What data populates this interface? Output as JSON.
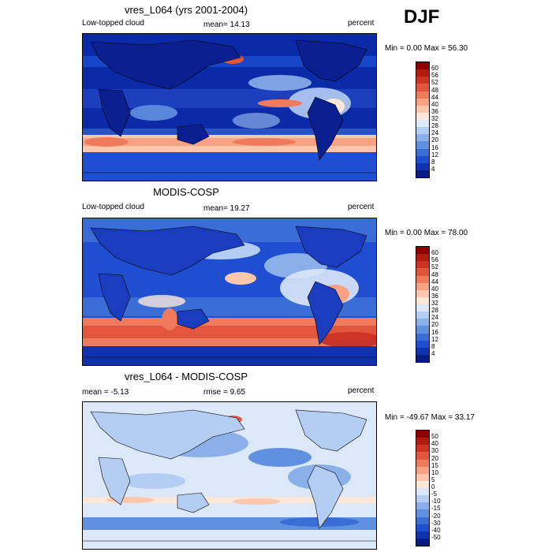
{
  "season": "DJF",
  "panels": [
    {
      "title": "vres_L064 (yrs 2001-2004)",
      "left_text": "Low-topped cloud",
      "center_text": "mean=  14.13",
      "right_text": "percent",
      "minmax": "Min =   0.00 Max =  56.30",
      "colorbar": {
        "labels": [
          "60",
          "56",
          "52",
          "48",
          "44",
          "40",
          "36",
          "32",
          "28",
          "24",
          "20",
          "16",
          "12",
          "8",
          "4"
        ],
        "colors": [
          "#8b0000",
          "#b11a0f",
          "#cc3322",
          "#e2563d",
          "#f07a5c",
          "#f7a282",
          "#fcc7ad",
          "#fde7d9",
          "#dbe8f8",
          "#b4cdf2",
          "#8bafe9",
          "#6090e0",
          "#3a6ed6",
          "#1f4fd0",
          "#0f33b0",
          "#061c84"
        ]
      }
    },
    {
      "title": "MODIS-COSP",
      "left_text": "Low-topped cloud",
      "center_text": "mean=  19.27",
      "right_text": "percent",
      "minmax": "Min =   0.00 Max =  78.00",
      "colorbar": {
        "labels": [
          "60",
          "56",
          "52",
          "48",
          "44",
          "40",
          "36",
          "32",
          "28",
          "24",
          "20",
          "16",
          "12",
          "8",
          "4"
        ],
        "colors": [
          "#8b0000",
          "#b11a0f",
          "#cc3322",
          "#e2563d",
          "#f07a5c",
          "#f7a282",
          "#fcc7ad",
          "#fde7d9",
          "#dbe8f8",
          "#b4cdf2",
          "#8bafe9",
          "#6090e0",
          "#3a6ed6",
          "#1f4fd0",
          "#0f33b0",
          "#061c84"
        ]
      }
    },
    {
      "title": "vres_L064 - MODIS-COSP",
      "left_text": "mean =  -5.13",
      "center_text": "rmse =    9.65",
      "right_text": "percent",
      "minmax": "Min = -49.67 Max =  33.17",
      "colorbar": {
        "labels": [
          "50",
          "40",
          "30",
          "20",
          "15",
          "10",
          "5",
          "0",
          "-5",
          "-10",
          "-15",
          "-20",
          "-30",
          "-40",
          "-50"
        ],
        "colors": [
          "#8b0000",
          "#b11a0f",
          "#cc3322",
          "#e2563d",
          "#f07a5c",
          "#f7a282",
          "#fcc7ad",
          "#fde7d9",
          "#dbe8f8",
          "#b4cdf2",
          "#8bafe9",
          "#6090e0",
          "#3a6ed6",
          "#1f4fd0",
          "#0f33b0",
          "#061c84"
        ]
      }
    }
  ]
}
